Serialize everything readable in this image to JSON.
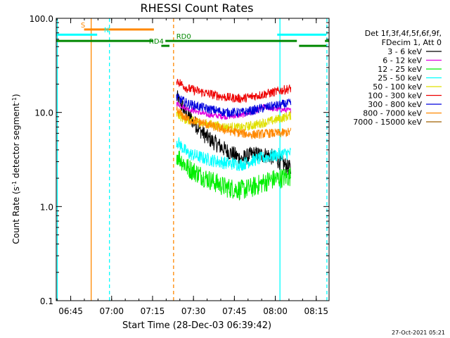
{
  "chart_data": {
    "type": "line",
    "title": "RHESSI Count Rates",
    "xlabel": "Start Time (28-Dec-03 06:39:42)",
    "ylabel_main": "Count Rate (s",
    "ylabel_sup1": "-1",
    "ylabel_mid": " detector segment",
    "ylabel_sup2": "-1",
    "ylabel_end": ")",
    "y_scale": "log",
    "ylim": [
      0.1,
      100.0
    ],
    "xlim_minutes": [
      0,
      100
    ],
    "x_ticks": [
      {
        "label": "06:45",
        "minute": 5.3
      },
      {
        "label": "07:00",
        "minute": 20.3
      },
      {
        "label": "07:15",
        "minute": 35.3
      },
      {
        "label": "07:30",
        "minute": 50.3
      },
      {
        "label": "07:45",
        "minute": 65.3
      },
      {
        "label": "08:00",
        "minute": 80.3
      },
      {
        "label": "08:15",
        "minute": 95.3
      }
    ],
    "y_ticks": [
      {
        "label": "0.1",
        "value": 0.1
      },
      {
        "label": "1.0",
        "value": 1.0
      },
      {
        "label": "10.0",
        "value": 10.0
      },
      {
        "label": "100.0",
        "value": 100.0
      }
    ],
    "legend": {
      "header1": "Det 1f,3f,4f,5f,6f,9f,",
      "header2": "FDecim 1, Att 0",
      "placement": "right"
    },
    "data_start_minute": 44.1,
    "data_end_minute": 86.0,
    "series": [
      {
        "name": "3 - 6 keV",
        "color": "#000000",
        "points": [
          [
            44.1,
            14.5
          ],
          [
            48,
            9.5
          ],
          [
            55,
            5.5
          ],
          [
            62,
            4.0
          ],
          [
            68,
            3.2
          ],
          [
            72,
            3.6
          ],
          [
            78,
            3.5
          ],
          [
            82,
            3.0
          ],
          [
            86,
            2.5
          ]
        ]
      },
      {
        "name": "6 - 12 keV",
        "color": "#e000e0",
        "points": [
          [
            44.1,
            12.5
          ],
          [
            48,
            11.0
          ],
          [
            55,
            9.5
          ],
          [
            62,
            9.0
          ],
          [
            68,
            9.3
          ],
          [
            73,
            10.2
          ],
          [
            76,
            11.5
          ],
          [
            80,
            10.8
          ],
          [
            86,
            10.5
          ]
        ]
      },
      {
        "name": "12 - 25 keV",
        "color": "#00ee00",
        "points": [
          [
            44.1,
            3.6
          ],
          [
            48,
            2.6
          ],
          [
            55,
            2.0
          ],
          [
            62,
            1.6
          ],
          [
            68,
            1.5
          ],
          [
            72,
            1.6
          ],
          [
            78,
            1.9
          ],
          [
            82,
            2.0
          ],
          [
            86,
            2.1
          ]
        ]
      },
      {
        "name": "25 - 50 keV",
        "color": "#00ffff",
        "points": [
          [
            44.1,
            5.0
          ],
          [
            48,
            3.7
          ],
          [
            55,
            3.2
          ],
          [
            62,
            2.9
          ],
          [
            68,
            2.8
          ],
          [
            72,
            3.1
          ],
          [
            78,
            3.4
          ],
          [
            82,
            3.6
          ],
          [
            86,
            3.7
          ]
        ]
      },
      {
        "name": "50 - 100 keV",
        "color": "#e0e000",
        "points": [
          [
            44.1,
            9.5
          ],
          [
            48,
            8.2
          ],
          [
            55,
            7.6
          ],
          [
            62,
            7.0
          ],
          [
            68,
            6.9
          ],
          [
            72,
            7.3
          ],
          [
            78,
            8.0
          ],
          [
            82,
            8.6
          ],
          [
            86,
            9.3
          ]
        ]
      },
      {
        "name": "100 - 300 keV",
        "color": "#ee0000",
        "points": [
          [
            44.1,
            22.0
          ],
          [
            48,
            18.0
          ],
          [
            55,
            16.0
          ],
          [
            62,
            14.5
          ],
          [
            68,
            14.0
          ],
          [
            72,
            14.8
          ],
          [
            78,
            16.0
          ],
          [
            82,
            17.0
          ],
          [
            86,
            18.0
          ]
        ]
      },
      {
        "name": "300 - 800 keV",
        "color": "#0000dd",
        "points": [
          [
            44.1,
            14.5
          ],
          [
            48,
            12.5
          ],
          [
            55,
            11.0
          ],
          [
            62,
            10.0
          ],
          [
            68,
            10.0
          ],
          [
            72,
            10.5
          ],
          [
            78,
            11.5
          ],
          [
            82,
            12.0
          ],
          [
            86,
            12.5
          ]
        ]
      },
      {
        "name": "800 - 7000 keV",
        "color": "#ff8800",
        "points": [
          [
            44.1,
            10.5
          ],
          [
            48,
            8.5
          ],
          [
            55,
            7.5
          ],
          [
            62,
            6.5
          ],
          [
            68,
            6.0
          ],
          [
            72,
            5.8
          ],
          [
            78,
            6.0
          ],
          [
            82,
            6.0
          ],
          [
            86,
            6.2
          ]
        ]
      },
      {
        "name": "7000 - 15000 keV",
        "color": "#a06000",
        "points": []
      }
    ],
    "flag_bars": [
      {
        "label": "S",
        "color": "#ff8800",
        "y_value": 76.0,
        "x_start": 10.2,
        "x_end": 35.8,
        "label_minute": 9.0
      },
      {
        "label": "N",
        "color": "#00ffff",
        "y_value": 67.0,
        "x_start": 0.0,
        "x_end": 15.0,
        "label_minute": 17.5
      },
      {
        "label": "",
        "color": "#00ffff",
        "y_value": 67.0,
        "x_start": 81.0,
        "x_end": 99.0,
        "label_minute": null
      },
      {
        "label": "",
        "color": "#008800",
        "y_value": 57.5,
        "x_start": 0.0,
        "x_end": 35.6,
        "label_minute": null
      },
      {
        "label": "RD0",
        "color": "#008800",
        "y_value": 57.5,
        "x_start": 40.0,
        "x_end": 88.2,
        "label_minute": 44.0
      },
      {
        "label": "RD4",
        "color": "#008800",
        "y_value": 51.0,
        "x_start": 38.5,
        "x_end": 41.5,
        "label_minute": 34.0
      },
      {
        "label": "",
        "color": "#008800",
        "y_value": 51.0,
        "x_start": 89.0,
        "x_end": 99.0,
        "label_minute": null
      },
      {
        "label": "",
        "color": "#008800",
        "y_value": 57.5,
        "x_start": 98.5,
        "x_end": 100.0,
        "label_minute": null
      }
    ],
    "vertical_markers": [
      {
        "minute": 0.4,
        "color": "#00ffff",
        "style": "solid"
      },
      {
        "minute": 12.8,
        "color": "#ff8800",
        "style": "solid"
      },
      {
        "minute": 19.5,
        "color": "#00ffff",
        "style": "dashed"
      },
      {
        "minute": 43.0,
        "color": "#ff8800",
        "style": "dashed"
      },
      {
        "minute": 82.0,
        "color": "#00ffff",
        "style": "solid"
      },
      {
        "minute": 99.2,
        "color": "#00ffff",
        "style": "dashed"
      }
    ],
    "timestamp": "27-Oct-2021 05:21"
  }
}
